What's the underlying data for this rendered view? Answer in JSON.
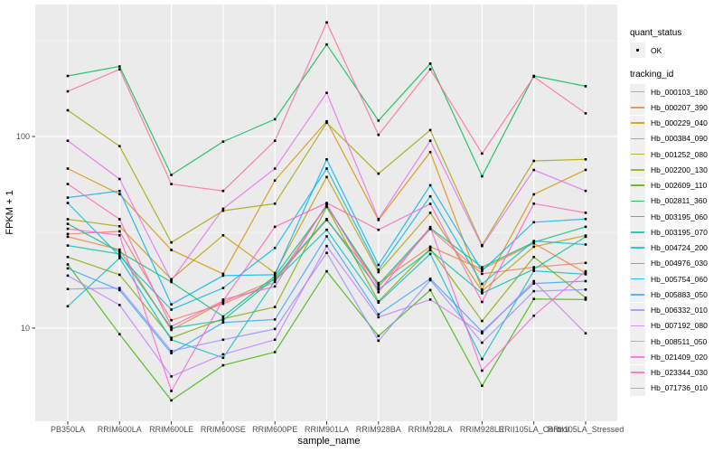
{
  "figure": {
    "panel_bg": "#EBEBEB",
    "grid_color": "#FFFFFF",
    "legend_key_bg": "#F0F0F0",
    "tick_mark_color": "#333333",
    "tick_label_color": "#4D4D4D",
    "point_color": "#000000"
  },
  "legend": {
    "quant_status_title": "quant_status",
    "quant_status_items": [
      {
        "label": "OK",
        "marker": "black-point"
      }
    ],
    "tracking_id_title": "tracking_id"
  },
  "chart_data": {
    "type": "line",
    "title": "",
    "xlabel": "sample_name",
    "ylabel": "FPKM + 1",
    "y_scale": "log10",
    "y_ticks": [
      10,
      100
    ],
    "y_range_approx": [
      3.3,
      480
    ],
    "grid": "major white on grey panel, minor at half-decades",
    "legend_position": "right",
    "point_marker": "small black dot on every data point (quant_status = OK)",
    "categories": [
      "PB350LA",
      "RRIM600LA",
      "RRIM600LE",
      "RRIM600SE",
      "RRIM600PE",
      "RRIM901LA",
      "RRIM928BA",
      "RRIM928LA",
      "RRIM928LE",
      "RRII105LA_Control",
      "RRII105LA_Stressed"
    ],
    "series": [
      {
        "name": "Hb_000103_180",
        "color": "#F8766D",
        "values": [
          31,
          32,
          11,
          13.4,
          17.4,
          43.9,
          16.4,
          32.9,
          19.2,
          20.8,
          21.9
        ]
      },
      {
        "name": "Hb_000207_390",
        "color": "#EA8331",
        "values": [
          30,
          25.7,
          9.8,
          13.7,
          17.9,
          36.7,
          17.2,
          26.6,
          20.3,
          27.7,
          19.4
        ]
      },
      {
        "name": "Hb_000229_040",
        "color": "#D89000",
        "values": [
          68,
          50,
          25.6,
          19.2,
          59,
          120,
          36.7,
          83,
          15.9,
          49.9,
          67
        ]
      },
      {
        "name": "Hb_000384_090",
        "color": "#C09B00",
        "values": [
          37,
          34,
          18,
          30.5,
          19.4,
          61.5,
          19.6,
          40,
          15.6,
          26.6,
          30.4
        ]
      },
      {
        "name": "Hb_001252_080",
        "color": "#A3A500",
        "values": [
          137,
          89,
          28,
          41,
          44.6,
          118,
          64,
          108,
          27.1,
          74.6,
          76
        ]
      },
      {
        "name": "Hb_002200_130",
        "color": "#7CAE00",
        "values": [
          23.5,
          19,
          8.9,
          11.2,
          12.9,
          42.9,
          13.8,
          26,
          10.9,
          23.5,
          14.4
        ]
      },
      {
        "name": "Hb_002609_110",
        "color": "#39B600",
        "values": [
          21.5,
          9.3,
          4.2,
          6.4,
          7.5,
          19.8,
          9.1,
          15.8,
          5,
          14.2,
          14.1
        ]
      },
      {
        "name": "Hb_002811_360",
        "color": "#00BB4E",
        "values": [
          207,
          232,
          63,
          94,
          123,
          302,
          121,
          240,
          62,
          207,
          183
        ]
      },
      {
        "name": "Hb_003195_060",
        "color": "#00BF7D",
        "values": [
          35,
          25,
          17.4,
          11.5,
          18.7,
          43.4,
          16.9,
          33.3,
          20.8,
          28.1,
          33.8
        ]
      },
      {
        "name": "Hb_003195_070",
        "color": "#00C1A3",
        "values": [
          27,
          24.4,
          10,
          11,
          18.3,
          37.1,
          15.9,
          25.5,
          15.2,
          20.3,
          30
        ]
      },
      {
        "name": "Hb_004724_200",
        "color": "#00BFC4",
        "values": [
          13,
          23.2,
          8.7,
          7,
          17.7,
          32.6,
          13.6,
          24.4,
          6.9,
          19.9,
          19.1
        ]
      },
      {
        "name": "Hb_004976_030",
        "color": "#00BAE0",
        "values": [
          45,
          23.8,
          12.5,
          16.2,
          26.2,
          68,
          20.2,
          48.7,
          17,
          28.5,
          27.3
        ]
      },
      {
        "name": "Hb_005754_060",
        "color": "#00B0F6",
        "values": [
          48,
          52,
          13.3,
          18.8,
          19,
          76,
          21.4,
          55.6,
          19.9,
          35.7,
          37.1
        ]
      },
      {
        "name": "Hb_005883_050",
        "color": "#35A2FF",
        "values": [
          20.5,
          15.8,
          7.4,
          10.7,
          11.1,
          30.1,
          11.8,
          18.1,
          9.6,
          17.1,
          17.6
        ]
      },
      {
        "name": "Hb_006332_010",
        "color": "#9590FF",
        "values": [
          16,
          16.2,
          7.6,
          8.7,
          9.9,
          24.7,
          8.6,
          17.8,
          8.4,
          15.6,
          15.9
        ]
      },
      {
        "name": "Hb_007192_080",
        "color": "#C77CFF",
        "values": [
          18.8,
          13.2,
          5.6,
          7.3,
          8.7,
          26.8,
          11.4,
          14.1,
          9.4,
          17.6,
          9.4
        ]
      },
      {
        "name": "Hb_008511_050",
        "color": "#E76BF3",
        "values": [
          95,
          60,
          17.7,
          42,
          68,
          169,
          37.1,
          95,
          26.8,
          66.9,
          52
        ]
      },
      {
        "name": "Hb_021409_020",
        "color": "#FA62DB",
        "values": [
          33,
          30.5,
          4.7,
          14.1,
          16.5,
          44.4,
          15.4,
          33.7,
          6,
          11.6,
          19.8
        ]
      },
      {
        "name": "Hb_023344_030",
        "color": "#FF62BC",
        "values": [
          56.5,
          37,
          10.2,
          13.9,
          33.8,
          45,
          32.6,
          44.5,
          13.7,
          44.6,
          40
        ]
      },
      {
        "name": "Hb_071736_010",
        "color": "#FF6A98",
        "values": [
          172,
          224,
          56.5,
          52,
          95,
          394,
          102,
          224,
          81.5,
          205,
          132
        ]
      }
    ]
  }
}
